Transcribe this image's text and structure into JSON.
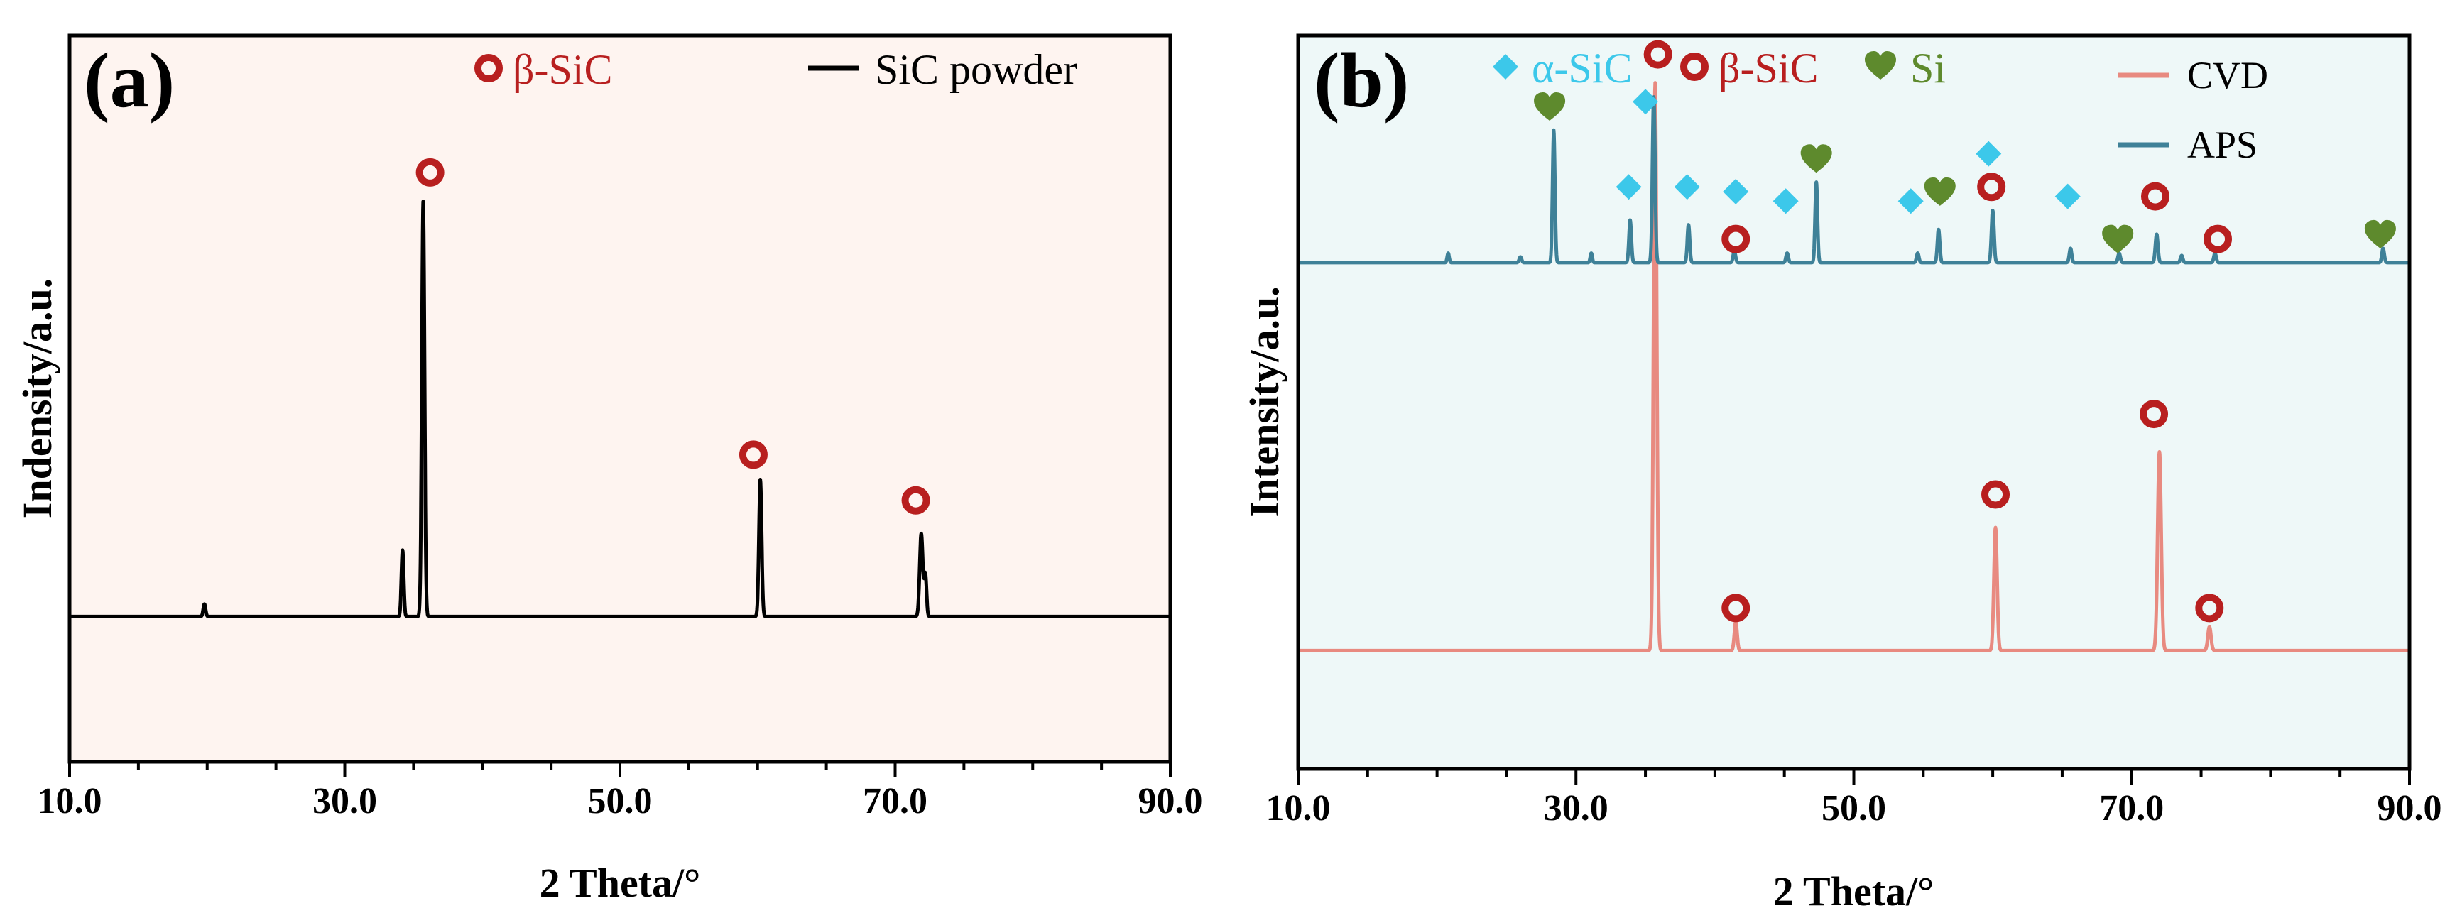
{
  "chart_data": [
    {
      "panel_label": "(a)",
      "type": "line",
      "xlabel": "2 Theta/°",
      "ylabel": "Indensity/a.u.",
      "xlim": [
        10,
        90
      ],
      "ylim": [
        -0.35,
        1.4
      ],
      "x_ticks": [
        10,
        30,
        50,
        70,
        90
      ],
      "x_tick_labels": [
        "10.0",
        "30.0",
        "50.0",
        "70.0",
        "90.0"
      ],
      "background": "#fef4f0",
      "legend": {
        "placement": "top-right",
        "entries": [
          {
            "label": "β-SiC",
            "marker": "beta-SiC-ring",
            "color": "#b81f1f"
          },
          {
            "label": "SiC powder",
            "marker": "line",
            "color": "#000000"
          }
        ]
      },
      "series": [
        {
          "name": "SiC powder",
          "color": "#000000",
          "baseline": 0,
          "peaks": [
            {
              "x": 19.8,
              "h": 0.03,
              "w": 0.12
            },
            {
              "x": 34.2,
              "h": 0.16,
              "w": 0.12
            },
            {
              "x": 35.7,
              "h": 1.0,
              "w": 0.14
            },
            {
              "x": 60.2,
              "h": 0.33,
              "w": 0.14
            },
            {
              "x": 71.9,
              "h": 0.2,
              "w": 0.16
            },
            {
              "x": 72.2,
              "h": 0.1,
              "w": 0.12
            }
          ]
        }
      ],
      "markers": [
        {
          "phase": "β-SiC",
          "x": 36.2,
          "y": 1.07
        },
        {
          "phase": "β-SiC",
          "x": 59.7,
          "y": 0.39
        },
        {
          "phase": "β-SiC",
          "x": 71.5,
          "y": 0.28
        }
      ]
    },
    {
      "panel_label": "(b)",
      "type": "line",
      "xlabel": "2 Theta/°",
      "ylabel": "Intensity/a.u.",
      "xlim": [
        10,
        90
      ],
      "ylim": [
        -0.25,
        1.3
      ],
      "x_ticks": [
        10,
        30,
        50,
        70,
        90
      ],
      "x_tick_labels": [
        "10.0",
        "30.0",
        "50.0",
        "70.0",
        "90.0"
      ],
      "background": "#eef8f8",
      "legend": {
        "placement": "top-right",
        "entries": [
          {
            "label": "CVD",
            "marker": "line",
            "color": "#e88a80"
          },
          {
            "label": "APS",
            "marker": "line",
            "color": "#3e8198"
          }
        ],
        "phase_entries": [
          {
            "label": "α-SiC",
            "marker": "alpha-SiC-diamond",
            "color": "#3cc8ea"
          },
          {
            "label": "β-SiC",
            "marker": "beta-SiC-ring",
            "color": "#b81f1f"
          },
          {
            "label": "Si",
            "marker": "Si-heart",
            "color": "#5e8a2d"
          }
        ]
      },
      "series": [
        {
          "name": "CVD",
          "color": "#e88a80",
          "baseline": 0,
          "peaks": [
            {
              "x": 35.7,
              "h": 1.2,
              "w": 0.16
            },
            {
              "x": 41.5,
              "h": 0.06,
              "w": 0.14
            },
            {
              "x": 60.2,
              "h": 0.26,
              "w": 0.16
            },
            {
              "x": 72.0,
              "h": 0.42,
              "w": 0.18
            },
            {
              "x": 75.6,
              "h": 0.05,
              "w": 0.16
            }
          ]
        },
        {
          "name": "APS",
          "color": "#3e8198",
          "baseline": 0.82,
          "peaks": [
            {
              "x": 20.8,
              "h": 0.02,
              "w": 0.1
            },
            {
              "x": 26.0,
              "h": 0.012,
              "w": 0.12
            },
            {
              "x": 28.4,
              "h": 0.28,
              "w": 0.12
            },
            {
              "x": 31.1,
              "h": 0.02,
              "w": 0.1
            },
            {
              "x": 33.9,
              "h": 0.09,
              "w": 0.12
            },
            {
              "x": 35.6,
              "h": 0.35,
              "w": 0.13
            },
            {
              "x": 38.1,
              "h": 0.08,
              "w": 0.12
            },
            {
              "x": 41.4,
              "h": 0.025,
              "w": 0.12
            },
            {
              "x": 45.2,
              "h": 0.02,
              "w": 0.12
            },
            {
              "x": 47.3,
              "h": 0.17,
              "w": 0.12
            },
            {
              "x": 54.6,
              "h": 0.02,
              "w": 0.12
            },
            {
              "x": 56.1,
              "h": 0.07,
              "w": 0.12
            },
            {
              "x": 60.0,
              "h": 0.11,
              "w": 0.13
            },
            {
              "x": 65.6,
              "h": 0.03,
              "w": 0.12
            },
            {
              "x": 69.1,
              "h": 0.02,
              "w": 0.12
            },
            {
              "x": 71.8,
              "h": 0.06,
              "w": 0.13
            },
            {
              "x": 73.6,
              "h": 0.015,
              "w": 0.12
            },
            {
              "x": 76.0,
              "h": 0.02,
              "w": 0.12
            },
            {
              "x": 88.1,
              "h": 0.03,
              "w": 0.12
            }
          ]
        }
      ],
      "markers": [
        {
          "phase": "Si",
          "x": 28.1,
          "y": 1.15
        },
        {
          "phase": "α-SiC",
          "x": 35.0,
          "y": 1.16
        },
        {
          "phase": "β-SiC",
          "x": 35.9,
          "y": 1.26
        },
        {
          "phase": "α-SiC",
          "x": 33.8,
          "y": 0.98
        },
        {
          "phase": "α-SiC",
          "x": 38.0,
          "y": 0.98
        },
        {
          "phase": "α-SiC",
          "x": 41.5,
          "y": 0.97
        },
        {
          "phase": "β-SiC",
          "x": 41.5,
          "y": 0.87
        },
        {
          "phase": "α-SiC",
          "x": 45.1,
          "y": 0.95
        },
        {
          "phase": "Si",
          "x": 47.3,
          "y": 1.04
        },
        {
          "phase": "α-SiC",
          "x": 54.1,
          "y": 0.95
        },
        {
          "phase": "Si",
          "x": 56.2,
          "y": 0.97
        },
        {
          "phase": "α-SiC",
          "x": 59.7,
          "y": 1.05
        },
        {
          "phase": "β-SiC",
          "x": 59.9,
          "y": 0.98
        },
        {
          "phase": "α-SiC",
          "x": 65.4,
          "y": 0.96
        },
        {
          "phase": "Si",
          "x": 69.0,
          "y": 0.87
        },
        {
          "phase": "β-SiC",
          "x": 71.7,
          "y": 0.96
        },
        {
          "phase": "β-SiC",
          "x": 76.2,
          "y": 0.87
        },
        {
          "phase": "Si",
          "x": 87.9,
          "y": 0.88
        },
        {
          "phase": "β-SiC",
          "x": 41.5,
          "y": 0.09
        },
        {
          "phase": "β-SiC",
          "x": 60.2,
          "y": 0.33
        },
        {
          "phase": "β-SiC",
          "x": 71.6,
          "y": 0.5
        },
        {
          "phase": "β-SiC",
          "x": 75.6,
          "y": 0.09
        }
      ]
    }
  ]
}
